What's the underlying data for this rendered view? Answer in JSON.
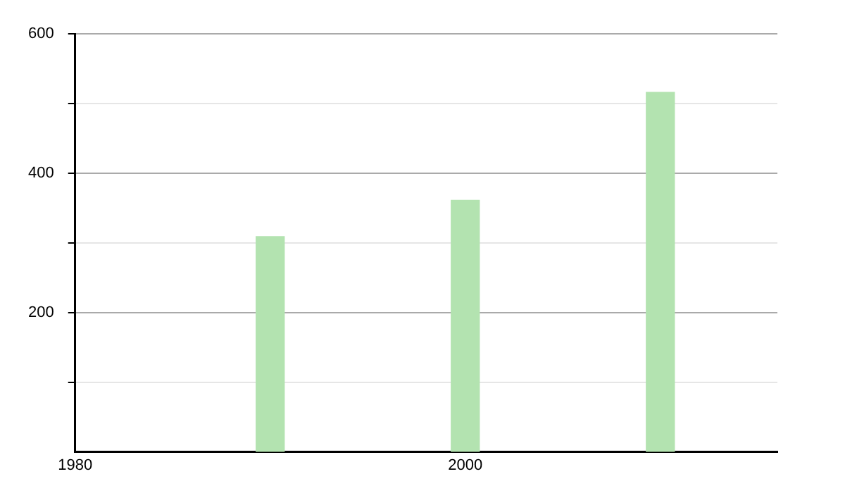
{
  "chart_data": {
    "type": "bar",
    "x": [
      1990,
      2000,
      2010
    ],
    "values": [
      309,
      361,
      516
    ],
    "color": "#b3e3b0",
    "xlim": [
      1980,
      2016
    ],
    "xticks": [
      1980,
      2000
    ],
    "ylim": [
      0,
      600
    ],
    "yticks": [
      {
        "value": 100,
        "label": null
      },
      200,
      {
        "value": 300,
        "label": null
      },
      400,
      {
        "value": 500,
        "label": null
      },
      600
    ],
    "grid": "y",
    "legend": false
  }
}
